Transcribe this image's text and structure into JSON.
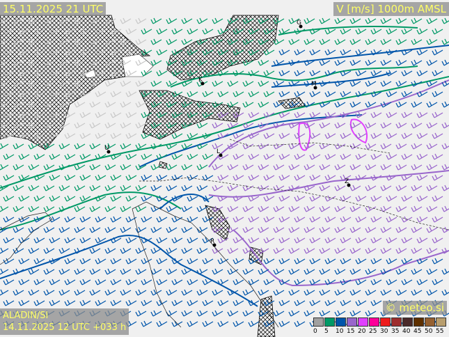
{
  "header": {
    "valid_time": "15.11.2025 21 UTC",
    "parameter": "V [m/s] 1000m AMSL"
  },
  "model": {
    "name": "ALADIN/SI",
    "run": "14.11.2025 12 UTC +033 h"
  },
  "copyright": "© meteo.si",
  "legend": {
    "ticks": [
      "0",
      "5",
      "10",
      "15",
      "20",
      "25",
      "30",
      "35",
      "40",
      "45",
      "50",
      "55"
    ],
    "colors": [
      "#a0a0a0",
      "#009966",
      "#0055aa",
      "#9966cc",
      "#e040ff",
      "#ff0099",
      "#ee1c1c",
      "#9e2e2e",
      "#4a2a2a",
      "#5e3000",
      "#956030",
      "#b89e6e"
    ]
  },
  "cities": [
    {
      "label": "G"
    },
    {
      "label": "K"
    },
    {
      "label": "M"
    },
    {
      "label": "U"
    },
    {
      "label": "L"
    },
    {
      "label": "Z"
    },
    {
      "label": "R"
    }
  ],
  "colors": {
    "calm": "#009966",
    "moderate": "#0055aa",
    "strong": "#9966cc",
    "very_strong": "#e040ff",
    "terrain_hatch": "#000000"
  }
}
